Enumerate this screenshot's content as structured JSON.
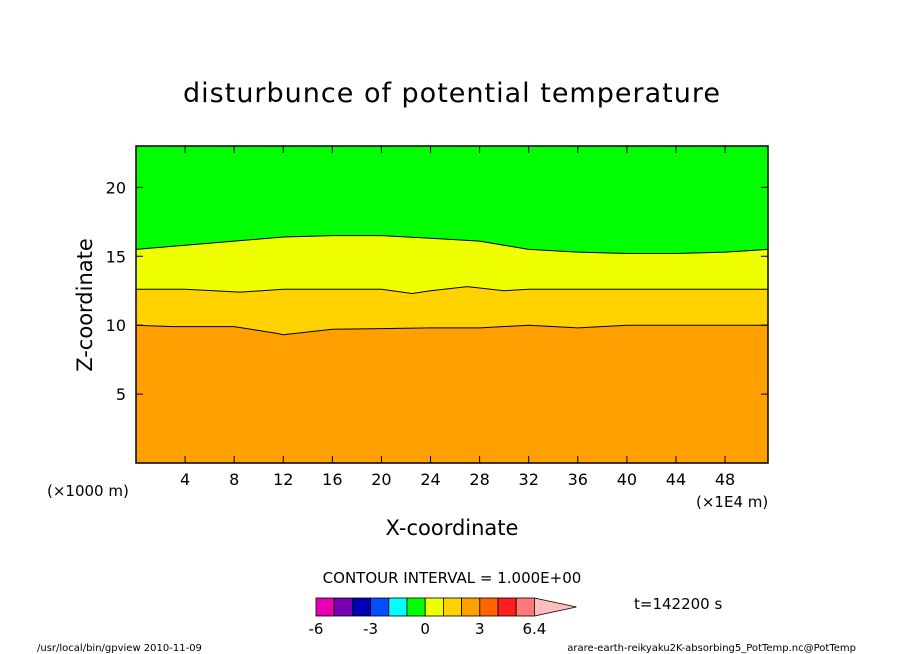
{
  "chart_data": {
    "type": "contour",
    "title": "disturbunce of potential temperature",
    "xlabel": "X-coordinate",
    "ylabel": "Z-coordinate",
    "x_unit_left": "(×1000 m)",
    "x_unit_right": "(×1E4 m)",
    "xlim": [
      0,
      51.5
    ],
    "ylim": [
      0,
      23
    ],
    "x_ticks": [
      4,
      8,
      12,
      16,
      20,
      24,
      28,
      32,
      36,
      40,
      44,
      48
    ],
    "y_ticks": [
      5,
      10,
      15,
      20
    ],
    "contour_interval_text": "CONTOUR INTERVAL = 1.000E+00",
    "contour_levels": [
      {
        "level": 3,
        "x": [
          0,
          3,
          8,
          11.5,
          12,
          16,
          24,
          28,
          32,
          36,
          40,
          44,
          48,
          51.5
        ],
        "z": [
          10.0,
          9.9,
          9.9,
          9.4,
          9.3,
          9.7,
          9.8,
          9.8,
          10.0,
          9.8,
          10.0,
          10.0,
          10.0,
          10.0
        ]
      },
      {
        "level": 2,
        "x": [
          0,
          4,
          8.5,
          12,
          16,
          20,
          22.5,
          24,
          27,
          30,
          32,
          36,
          40,
          44,
          48,
          51.5
        ],
        "z": [
          12.6,
          12.6,
          12.4,
          12.6,
          12.6,
          12.6,
          12.3,
          12.5,
          12.8,
          12.5,
          12.6,
          12.6,
          12.6,
          12.6,
          12.6,
          12.6
        ]
      },
      {
        "level": 1,
        "x": [
          0,
          4,
          8,
          12,
          16,
          20,
          24,
          28,
          30,
          32,
          36,
          40,
          44,
          48,
          51.5
        ],
        "z": [
          15.5,
          15.8,
          16.1,
          16.4,
          16.5,
          16.5,
          16.3,
          16.1,
          15.8,
          15.5,
          15.3,
          15.2,
          15.2,
          15.3,
          15.5
        ]
      }
    ],
    "colorbar": {
      "tick_labels": [
        "-6",
        "-3",
        "0",
        "3",
        "6.4"
      ],
      "colors": [
        "#e800b4",
        "#7800b4",
        "#0000b4",
        "#0050ff",
        "#00ffff",
        "#00ff00",
        "#f0ff00",
        "#ffd200",
        "#ffa000",
        "#ff6400",
        "#ff1e1e",
        "#ff7878",
        "#ffbebe"
      ],
      "fills": {
        "below_3": "#ffa000",
        "3_to_2": "#ffd200",
        "2_to_1": "#f0ff00",
        "above_1": "#00ff00"
      }
    },
    "time_label": "t=142200 s"
  },
  "footer": {
    "left": "/usr/local/bin/gpview  2010-11-09",
    "right": "arare-earth-reikyaku2K-absorbing5_PotTemp.nc@PotTemp"
  }
}
